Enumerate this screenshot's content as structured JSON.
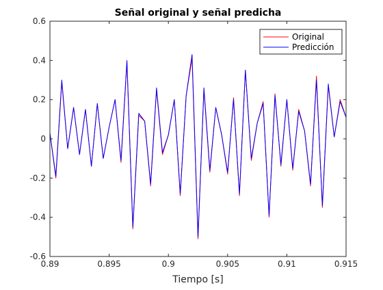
{
  "chart_data": {
    "type": "line",
    "title": "Señal original y señal predicha",
    "xlabel": "Tiempo [s]",
    "ylabel": "",
    "xlim": [
      0.89,
      0.915
    ],
    "ylim": [
      -0.6,
      0.6
    ],
    "grid": false,
    "legend_position": "top-right",
    "x_ticks": [
      0.89,
      0.895,
      0.9,
      0.905,
      0.91,
      0.915
    ],
    "x_tick_labels": [
      "0.89",
      "0.895",
      "0.9",
      "0.905",
      "0.91",
      "0.915"
    ],
    "y_ticks": [
      -0.6,
      -0.4,
      -0.2,
      0,
      0.2,
      0.4,
      0.6
    ],
    "y_tick_labels": [
      "-0.6",
      "-0.4",
      "-0.2",
      "0",
      "0.2",
      "0.4",
      "0.6"
    ],
    "x": [
      0.89,
      0.8905,
      0.891,
      0.8915,
      0.892,
      0.8925,
      0.893,
      0.8935,
      0.894,
      0.8945,
      0.895,
      0.8955,
      0.896,
      0.8965,
      0.897,
      0.8975,
      0.898,
      0.8985,
      0.899,
      0.8995,
      0.9,
      0.9005,
      0.901,
      0.9015,
      0.902,
      0.9025,
      0.903,
      0.9035,
      0.904,
      0.9045,
      0.905,
      0.9055,
      0.906,
      0.9065,
      0.907,
      0.9075,
      0.908,
      0.9085,
      0.909,
      0.9095,
      0.91,
      0.9105,
      0.911,
      0.9115,
      0.912,
      0.9125,
      0.913,
      0.9135,
      0.914,
      0.9145,
      0.915
    ],
    "series": [
      {
        "name": "Original",
        "color": "#ff0000",
        "values": [
          0.03,
          -0.2,
          0.29,
          -0.05,
          0.16,
          -0.08,
          0.15,
          -0.14,
          0.18,
          -0.1,
          0.06,
          0.2,
          -0.12,
          0.39,
          -0.46,
          0.12,
          0.09,
          -0.24,
          0.25,
          -0.08,
          0.02,
          0.2,
          -0.29,
          0.22,
          0.41,
          -0.51,
          0.25,
          -0.17,
          0.16,
          0.02,
          -0.18,
          0.21,
          -0.29,
          0.35,
          -0.11,
          0.08,
          0.19,
          -0.4,
          0.23,
          -0.14,
          0.2,
          -0.16,
          0.15,
          0.04,
          -0.24,
          0.32,
          -0.35,
          0.27,
          0.01,
          0.2,
          0.11
        ]
      },
      {
        "name": "Predicción",
        "color": "#0000ff",
        "values": [
          0.03,
          -0.19,
          0.3,
          -0.05,
          0.16,
          -0.08,
          0.15,
          -0.14,
          0.18,
          -0.1,
          0.06,
          0.2,
          -0.11,
          0.4,
          -0.45,
          0.13,
          0.09,
          -0.23,
          0.26,
          -0.07,
          0.02,
          0.2,
          -0.28,
          0.22,
          0.43,
          -0.5,
          0.26,
          -0.16,
          0.16,
          0.02,
          -0.17,
          0.2,
          -0.28,
          0.35,
          -0.1,
          0.08,
          0.18,
          -0.39,
          0.22,
          -0.13,
          0.2,
          -0.15,
          0.14,
          0.04,
          -0.23,
          0.3,
          -0.34,
          0.28,
          0.01,
          0.19,
          0.11
        ]
      }
    ]
  }
}
